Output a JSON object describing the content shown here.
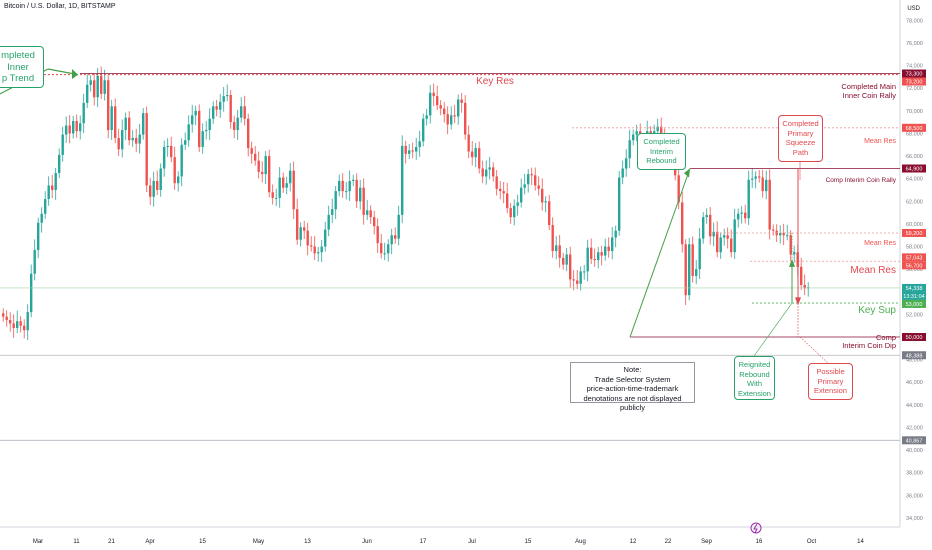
{
  "header": {
    "title": "Bitcoin / U.S. Dollar, 1D, BITSTAMP",
    "currency": "USD"
  },
  "chart_data": {
    "type": "candlestick",
    "symbol": "Bitcoin / U.S. Dollar",
    "interval": "1D",
    "exchange": "BITSTAMP",
    "ylim": [
      33200,
      79800
    ],
    "y_ticks": [
      34000,
      36000,
      38000,
      40000,
      42000,
      44000,
      46000,
      48000,
      50000,
      52000,
      54000,
      56000,
      58000,
      60000,
      62000,
      64000,
      66000,
      68000,
      70000,
      72000,
      74000,
      76000,
      78000
    ],
    "x_ticks": [
      "Mar",
      "11",
      "21",
      "Apr",
      "15",
      "May",
      "13",
      "Jun",
      "17",
      "Jul",
      "15",
      "Aug",
      "12",
      "22",
      "Sep",
      "16",
      "Oct",
      "14"
    ],
    "series_close": [
      51800,
      51500,
      51200,
      50800,
      51400,
      51000,
      50600,
      52200,
      55600,
      57700,
      60100,
      60900,
      62200,
      63400,
      63000,
      64500,
      66100,
      67900,
      68700,
      68000,
      69100,
      68200,
      68900,
      70700,
      72300,
      72700,
      71200,
      73100,
      71500,
      72700,
      68300,
      70400,
      67600,
      66600,
      68300,
      69400,
      67400,
      67600,
      67100,
      67900,
      69800,
      63400,
      62400,
      63800,
      63000,
      64900,
      66800,
      66900,
      65900,
      63600,
      64200,
      67000,
      67400,
      68800,
      69600,
      70000,
      66800,
      68200,
      68300,
      69300,
      70400,
      70100,
      70800,
      71300,
      71400,
      69000,
      68300,
      69400,
      70400,
      69300,
      66700,
      66200,
      65600,
      64600,
      64400,
      66000,
      62800,
      62300,
      62300,
      64100,
      63200,
      63600,
      64700,
      61300,
      58600,
      59700,
      59400,
      58100,
      58000,
      57400,
      57500,
      58000,
      59500,
      60800,
      61300,
      62900,
      63800,
      62900,
      62900,
      63800,
      63900,
      62000,
      63200,
      60800,
      61200,
      60600,
      59800,
      58300,
      57400,
      57400,
      58200,
      59000,
      58700,
      60800,
      66900,
      66200,
      66500,
      66400,
      66800,
      67300,
      69300,
      69600,
      71600,
      71300,
      70500,
      70200,
      69700,
      68800,
      69600,
      69500,
      71000,
      70700,
      67900,
      66400,
      65900,
      66700,
      64900,
      64200,
      64800,
      65000,
      64200,
      63100,
      62900,
      62700,
      61400,
      60600,
      61600,
      61900,
      63200,
      63500,
      64400,
      64300,
      63400,
      63100,
      61900,
      62000,
      59900,
      57600,
      58100,
      57000,
      56400,
      57300,
      55100,
      55000,
      54700,
      55800,
      55800,
      57900,
      56900,
      56800,
      57500,
      57200,
      58000,
      57600,
      58800,
      59400,
      64100,
      64900,
      65800,
      67400,
      67900,
      68200,
      66400,
      66200,
      68200,
      68000,
      68200,
      68600,
      67500,
      66900,
      66000,
      66000,
      64300,
      61900,
      58200,
      53700,
      58200,
      55400,
      56000,
      58700,
      60600,
      60800,
      58900,
      59300,
      57500,
      58800,
      59000,
      58700,
      57500,
      60400,
      60900,
      61000,
      60500,
      63900,
      64000,
      64200,
      64100,
      62900,
      63900,
      59500,
      59400,
      59000,
      59200,
      59000,
      59000,
      57300,
      57500,
      56200,
      54600,
      54300,
      54400
    ],
    "levels": [
      {
        "label": "Completed Main Inner Coin Rally",
        "value": 73300
      },
      {
        "label": "Key Res",
        "value": 73200
      },
      {
        "label": "Mean Res",
        "value": 68500
      },
      {
        "label": "Comp Interim Coin Rally",
        "value": 64900
      },
      {
        "label": "Mean Res",
        "value": 59200
      },
      {
        "label": "Mean Res",
        "value": 56700
      },
      {
        "label": "Key Sup",
        "value": 53000
      },
      {
        "label": "Comp Interim Coin Dip",
        "value": 50000
      }
    ],
    "price_labels": [
      {
        "text": "73,300",
        "value": 73300,
        "color": "#880e2f"
      },
      {
        "text": "73,200",
        "value": 73200,
        "color": "#ef5350"
      },
      {
        "text": "68,500",
        "value": 68500,
        "color": "#ef5350"
      },
      {
        "text": "64,900",
        "value": 64900,
        "color": "#880e2f"
      },
      {
        "text": "59,200",
        "value": 59200,
        "color": "#ef5350"
      },
      {
        "text": "57,043",
        "value": 57043,
        "color": "#ef5350"
      },
      {
        "text": "56,700",
        "value": 56700,
        "color": "#ef5350"
      },
      {
        "text": "54,338",
        "value": 54338,
        "color": "#26a69a"
      },
      {
        "text": "13:31:04",
        "value": 53800,
        "color": "#26a69a"
      },
      {
        "text": "53,000",
        "value": 53000,
        "color": "#4caf50"
      },
      {
        "text": "50,000",
        "value": 50000,
        "color": "#880e2f"
      },
      {
        "text": "48,388",
        "value": 48388,
        "color": "#787b86"
      },
      {
        "text": "40,867",
        "value": 40867,
        "color": "#787b86"
      }
    ],
    "colors": {
      "up": "#26a69a",
      "down": "#ef5350",
      "key_res": "#e0484f",
      "key_sup": "#4caf50",
      "comp": "#880e2f"
    }
  },
  "annotations": {
    "key_res": "Key Res",
    "mean_res_1": "Mean Res",
    "comp_interim_rally": "Comp Interim Coin Rally",
    "mean_res_2": "Mean Res",
    "mean_res_3": "Mean Res",
    "key_sup": "Key Sup",
    "comp_dip_1": "Comp",
    "comp_dip_2": "Interim Coin Dip",
    "completed_main_1": "Completed Main",
    "completed_main_2": "Inner Coin Rally",
    "left_callout": [
      "mpleted",
      "Inner",
      "p Trend"
    ],
    "interim_rebound": [
      "Completed",
      "Interim",
      "Rebound"
    ],
    "primary_squeeze": [
      "Completed",
      "Primary",
      "Squeeze",
      "Path"
    ],
    "reignited": [
      "Reignited",
      "Rebound",
      "With",
      "Extension"
    ],
    "possible": [
      "Possible",
      "Primary",
      "Extension"
    ],
    "note": [
      "Note:",
      "Trade Selector System",
      "price-action-time-trademark",
      "denotations are not displayed publicly"
    ]
  }
}
